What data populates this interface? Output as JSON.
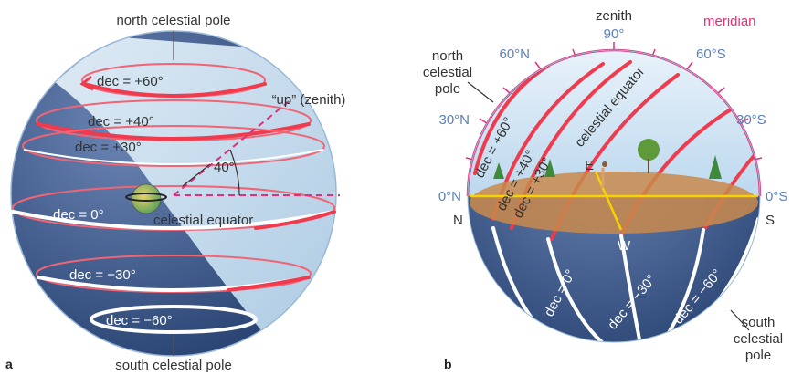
{
  "colors": {
    "sphere_dark": "#3d5a8c",
    "sphere_light": "#cfe3f2",
    "red_arrow": "#f03a4d",
    "meridian": "#e0307a",
    "axis_blue": "#5a7fb8",
    "horizon": "#c98a4b",
    "yellow": "#f5d200"
  },
  "panel_a": {
    "letter": "a",
    "north_pole": "north celestial pole",
    "south_pole": "south celestial pole",
    "zenith": "“up” (zenith)",
    "angle": "40°",
    "equator": "celestial equator",
    "dec_p60": "dec = +60°",
    "dec_p40": "dec = +40°",
    "dec_p30": "dec = +30°",
    "dec_0": "dec = 0°",
    "dec_m30": "dec = −30°",
    "dec_m60": "dec = −60°"
  },
  "panel_b": {
    "letter": "b",
    "zenith": "zenith",
    "meridian": "meridian",
    "north_pole_1": "north",
    "north_pole_2": "celestial",
    "north_pole_3": "pole",
    "south_pole_1": "south",
    "south_pole_2": "celestial",
    "south_pole_3": "pole",
    "alt_90": "90°",
    "alt_60n": "60°N",
    "alt_60s": "60°S",
    "alt_30n": "30°N",
    "alt_30s": "30°S",
    "alt_0n": "0°N",
    "alt_0s": "0°S",
    "dir_n": "N",
    "dir_s": "S",
    "dir_e": "E",
    "dir_w": "W",
    "equator": "celestial equator",
    "dec_p60": "dec = +60°",
    "dec_p40": "dec = +40°",
    "dec_p30": "dec = +30°",
    "dec_0": "dec = 0°",
    "dec_m30": "dec = −30°",
    "dec_m60": "dec = −60°"
  }
}
